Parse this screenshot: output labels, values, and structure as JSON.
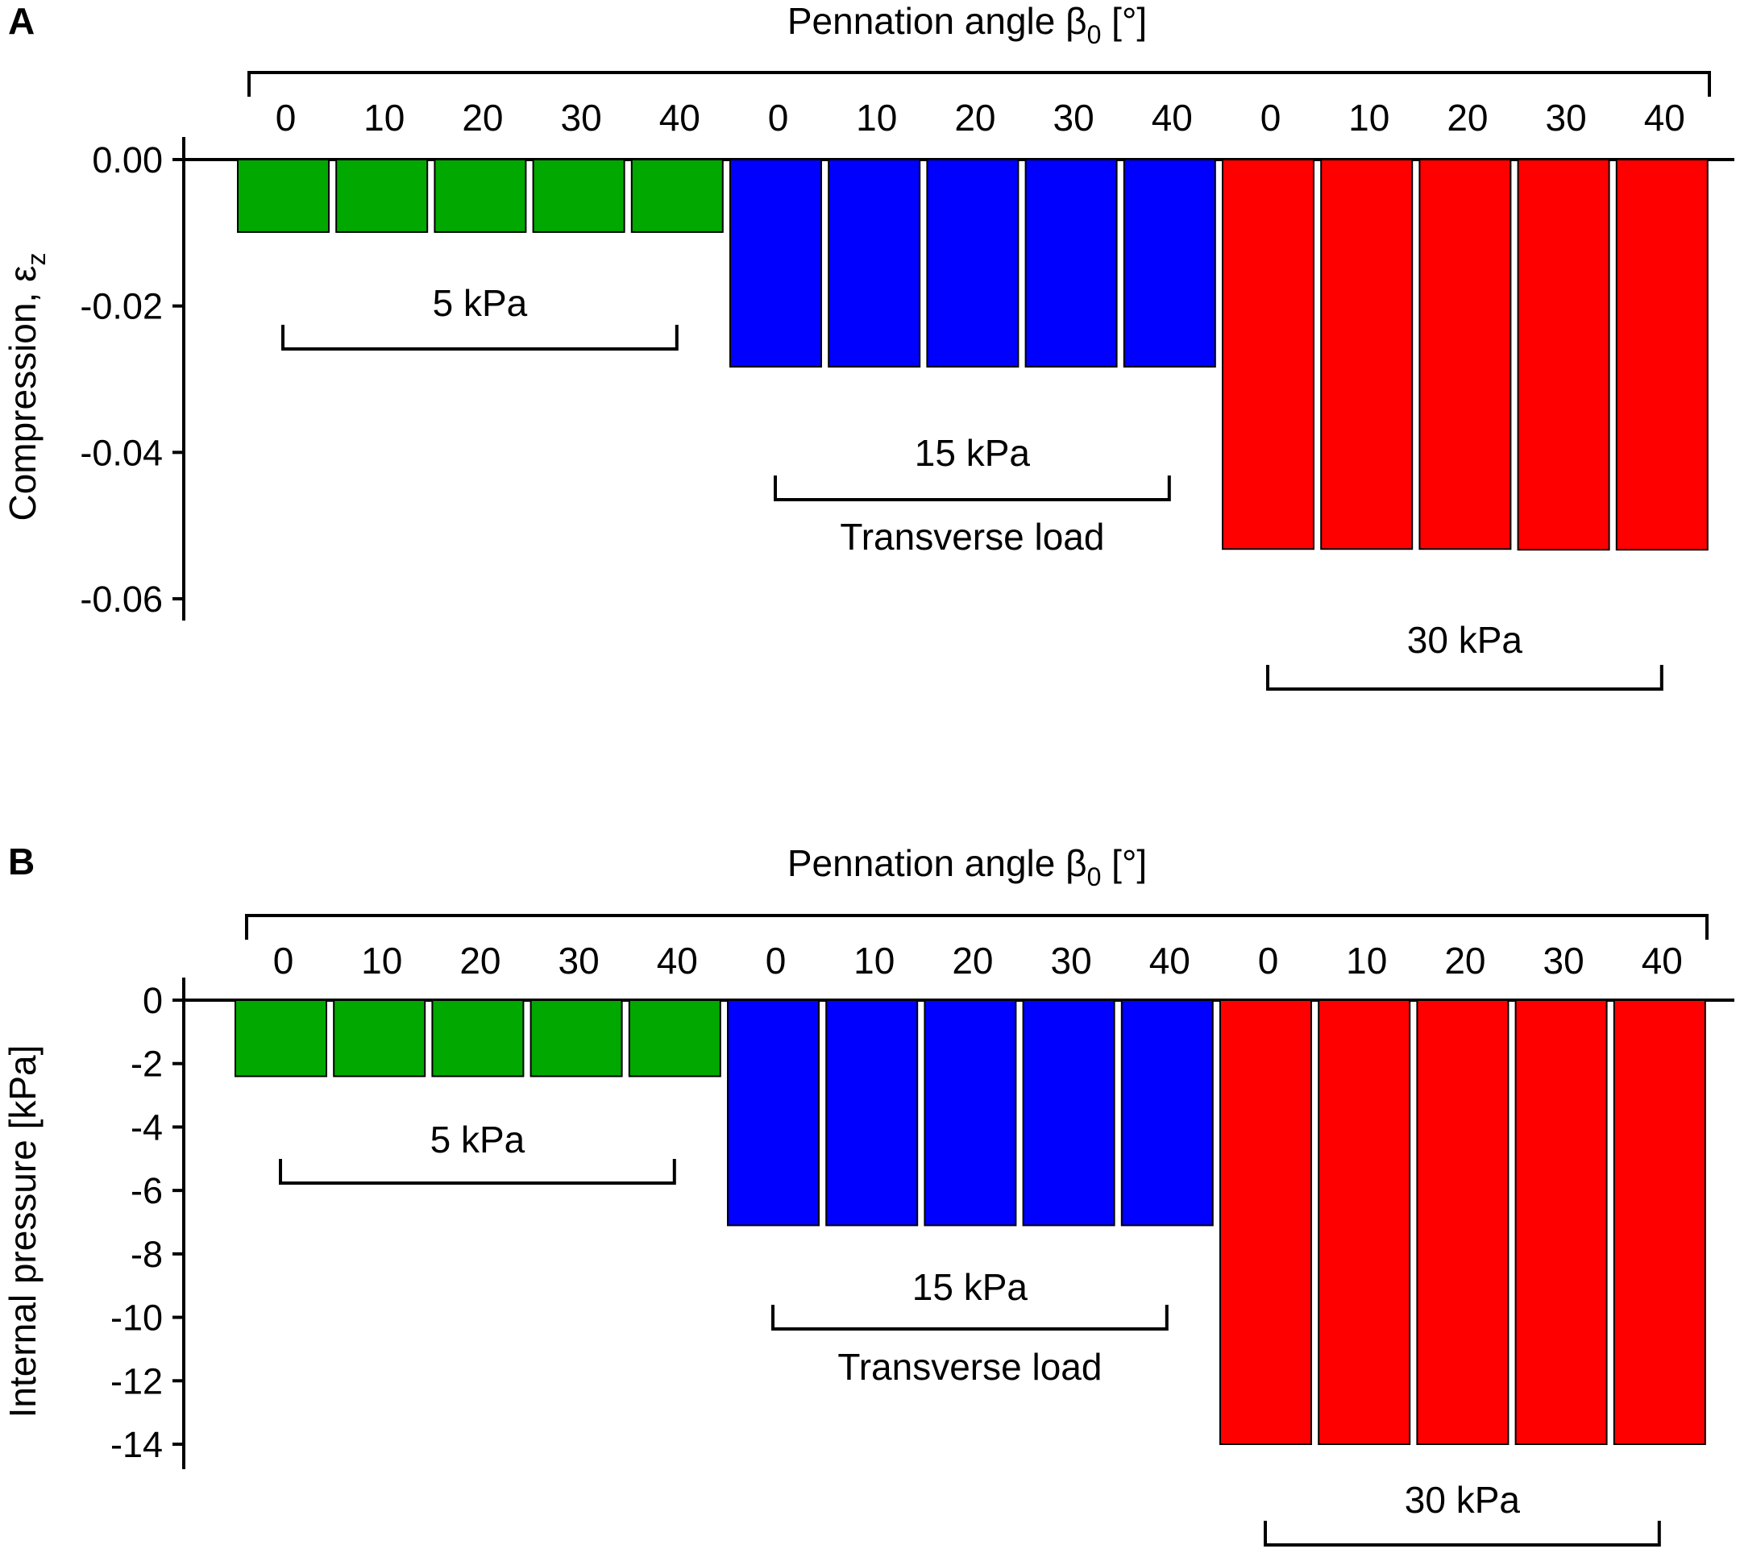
{
  "chart_data": [
    {
      "type": "bar",
      "panel": "A",
      "title": "Pennation angle β0 [°]",
      "title_main": "Pennation angle β",
      "title_sub": "0",
      "title_suffix": " [°]",
      "xlabel": "Pennation angle β0 [°]",
      "ylabel": "Compression, εz",
      "ylabel_main": "Compression, ε",
      "ylabel_sub": "z",
      "ylim": [
        -0.06,
        0
      ],
      "yticks": [
        0,
        -0.02,
        -0.04,
        -0.06
      ],
      "ytick_labels": [
        "0.00",
        "-0.02",
        "-0.04",
        "-0.06"
      ],
      "categories": [
        "0",
        "10",
        "20",
        "30",
        "40"
      ],
      "group_caption": "Transverse load",
      "series": [
        {
          "name": "5 kPa",
          "color": "#00a800",
          "values": [
            -0.0099,
            -0.0099,
            -0.0099,
            -0.0099,
            -0.0099
          ]
        },
        {
          "name": "15 kPa",
          "color": "#0000ff",
          "values": [
            -0.0283,
            -0.0283,
            -0.0283,
            -0.0283,
            -0.0283
          ]
        },
        {
          "name": "30 kPa",
          "color": "#ff0000",
          "values": [
            -0.0532,
            -0.0532,
            -0.0532,
            -0.0533,
            -0.0533
          ]
        }
      ]
    },
    {
      "type": "bar",
      "panel": "B",
      "title": "Pennation angle β0 [°]",
      "title_main": "Pennation angle β",
      "title_sub": "0",
      "title_suffix": " [°]",
      "xlabel": "Pennation angle β0 [°]",
      "ylabel": "Internal pressure [kPa]",
      "ylim": [
        -14,
        0
      ],
      "yticks": [
        0,
        -2,
        -4,
        -6,
        -8,
        -10,
        -12,
        -14
      ],
      "ytick_labels": [
        "0",
        "-2",
        "-4",
        "-6",
        "-8",
        "-10",
        "-12",
        "-14"
      ],
      "categories": [
        "0",
        "10",
        "20",
        "30",
        "40"
      ],
      "group_caption": "Transverse load",
      "series": [
        {
          "name": "5 kPa",
          "color": "#00a800",
          "values": [
            -2.4,
            -2.4,
            -2.4,
            -2.4,
            -2.4
          ]
        },
        {
          "name": "15 kPa",
          "color": "#0000ff",
          "values": [
            -7.1,
            -7.1,
            -7.1,
            -7.1,
            -7.1
          ]
        },
        {
          "name": "30 kPa",
          "color": "#ff0000",
          "values": [
            -14.0,
            -14.0,
            -14.0,
            -14.0,
            -14.0
          ]
        }
      ]
    }
  ]
}
